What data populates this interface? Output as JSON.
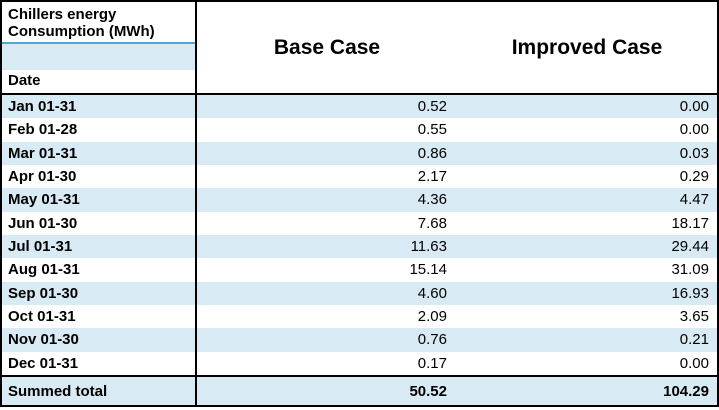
{
  "table": {
    "title_line1": "Chillers energy",
    "title_line2": "Consumption (MWh)",
    "date_header": "Date",
    "columns": {
      "base": "Base Case",
      "improved": "Improved Case"
    },
    "rows": [
      {
        "date": "Jan 01-31",
        "base": "0.52",
        "improved": "0.00"
      },
      {
        "date": "Feb 01-28",
        "base": "0.55",
        "improved": "0.00"
      },
      {
        "date": "Mar 01-31",
        "base": "0.86",
        "improved": "0.03"
      },
      {
        "date": "Apr 01-30",
        "base": "2.17",
        "improved": "0.29"
      },
      {
        "date": "May 01-31",
        "base": "4.36",
        "improved": "4.47"
      },
      {
        "date": "Jun 01-30",
        "base": "7.68",
        "improved": "18.17"
      },
      {
        "date": "Jul 01-31",
        "base": "11.63",
        "improved": "29.44"
      },
      {
        "date": "Aug 01-31",
        "base": "15.14",
        "improved": "31.09"
      },
      {
        "date": "Sep 01-30",
        "base": "4.60",
        "improved": "16.93"
      },
      {
        "date": "Oct 01-31",
        "base": "2.09",
        "improved": "3.65"
      },
      {
        "date": "Nov 01-30",
        "base": "0.76",
        "improved": "0.21"
      },
      {
        "date": "Dec 01-31",
        "base": "0.17",
        "improved": "0.00"
      }
    ],
    "total": {
      "label": "Summed total",
      "base": "50.52",
      "improved": "104.29"
    },
    "colors": {
      "row_highlight": "#d8eaf3",
      "accent_line": "#56a8c8",
      "border": "#000000"
    }
  }
}
